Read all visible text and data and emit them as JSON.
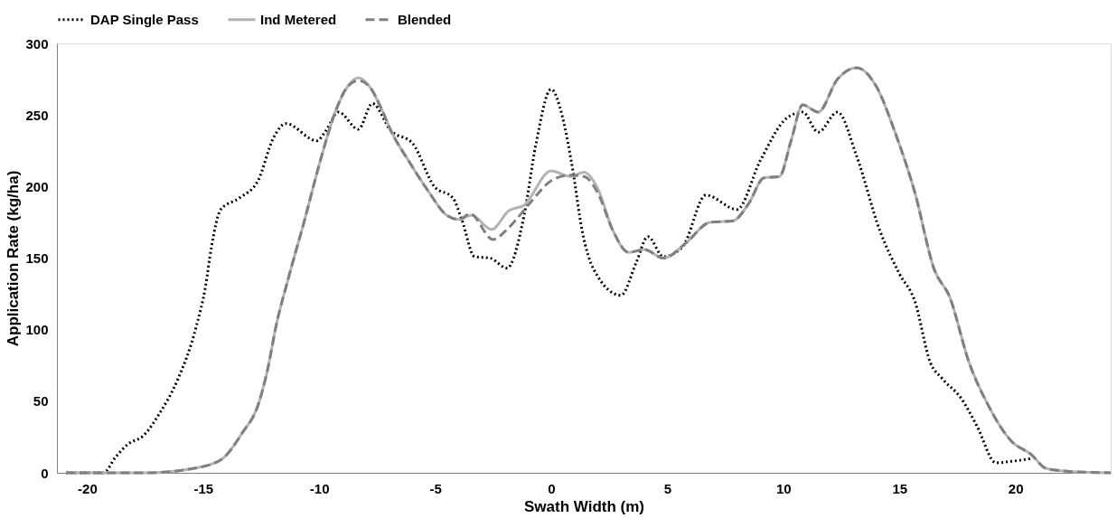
{
  "chart_data": {
    "type": "line",
    "xlabel": "Swath Width (m)",
    "ylabel": "Application Rate (kg/ha)",
    "xlim": [
      -21.3,
      24.1
    ],
    "xticks": [
      -20,
      -15,
      -10,
      -5,
      0,
      5,
      10,
      15,
      20
    ],
    "ylim": [
      0,
      300
    ],
    "yticks": [
      0,
      50,
      100,
      150,
      200,
      250,
      300
    ],
    "grid": false,
    "legend": "top",
    "marker": "none",
    "series": [
      {
        "name": "DAP Single Pass",
        "color": "#000000",
        "line_style": "dotted",
        "x": [
          -20.9,
          -19.3,
          -18.77,
          -18.24,
          -17.57,
          -16.9,
          -16.1,
          -15.3,
          -14.9,
          -14.64,
          -14.24,
          -13.44,
          -12.64,
          -11.97,
          -11.44,
          -10.1,
          -9.71,
          -9.17,
          -8.31,
          -7.71,
          -6.91,
          -5.97,
          -5.04,
          -4.24,
          -3.84,
          -3.31,
          -2.64,
          -1.91,
          -1.17,
          -0.67,
          -0.01,
          0.49,
          0.91,
          1.33,
          1.83,
          3.0,
          3.66,
          4.16,
          4.83,
          5.66,
          6.66,
          8.0,
          9.0,
          10.16,
          10.83,
          11.5,
          12.33,
          13.16,
          14.16,
          15.0,
          15.66,
          16.33,
          16.83,
          17.66,
          18.33,
          19.16,
          19.83,
          20.66
        ],
        "values": [
          0,
          0,
          11,
          20,
          26,
          41,
          65,
          102,
          130,
          158,
          184,
          192,
          204,
          234,
          244,
          232,
          239,
          252,
          240,
          258,
          239,
          230,
          200,
          192,
          176,
          151,
          150,
          143,
          180,
          229,
          268,
          248,
          213,
          169,
          142,
          124,
          147,
          165,
          151,
          158,
          194,
          184,
          218,
          248,
          252,
          238,
          252,
          221,
          169,
          139,
          120,
          77,
          66,
          52,
          33,
          7,
          8,
          10
        ]
      },
      {
        "name": "Ind Metered",
        "color": "#b3b3b3",
        "line_style": "solid",
        "x": [
          -20.9,
          -17.47,
          -15.44,
          -14.24,
          -13.31,
          -12.64,
          -12.24,
          -11.84,
          -11.31,
          -10.64,
          -9.97,
          -9.31,
          -8.77,
          -8.31,
          -7.84,
          -7.31,
          -6.91,
          -6.11,
          -5.31,
          -4.51,
          -3.97,
          -3.44,
          -2.57,
          -1.84,
          -1.17,
          -0.01,
          0.83,
          1.41,
          1.99,
          2.66,
          3.33,
          4.0,
          4.83,
          5.83,
          6.83,
          7.83,
          8.5,
          9.16,
          9.83,
          10.33,
          10.83,
          11.5,
          12.33,
          13.16,
          14.0,
          14.83,
          15.66,
          16.5,
          17.16,
          18.0,
          18.83,
          19.83,
          20.66,
          21.33,
          22.3,
          24.1
        ],
        "values": [
          0,
          0,
          3,
          9,
          28,
          47,
          71,
          104,
          137,
          176,
          217,
          252,
          270,
          276,
          270,
          254,
          239,
          217,
          197,
          180,
          177,
          180,
          170,
          183,
          187,
          211,
          207,
          210,
          199,
          169,
          154,
          156,
          150,
          161,
          175,
          176,
          188,
          206,
          207,
          232,
          257,
          252,
          275,
          283,
          270,
          237,
          196,
          142,
          123,
          77,
          47,
          22,
          13,
          3,
          1,
          0
        ]
      },
      {
        "name": "Blended",
        "color": "#808080",
        "line_style": "dashed",
        "x": [
          -20.9,
          -17.47,
          -15.44,
          -14.24,
          -13.31,
          -12.64,
          -12.24,
          -11.84,
          -11.31,
          -10.64,
          -9.97,
          -9.31,
          -8.77,
          -8.31,
          -7.84,
          -7.31,
          -6.91,
          -6.11,
          -5.31,
          -4.51,
          -3.97,
          -3.5,
          -2.51,
          -1.91,
          -1.51,
          -0.84,
          -0.01,
          0.83,
          1.41,
          1.99,
          2.66,
          3.33,
          4.0,
          4.83,
          5.83,
          6.83,
          7.83,
          8.5,
          9.16,
          9.83,
          10.33,
          10.83,
          11.5,
          12.33,
          13.16,
          14.0,
          14.83,
          15.66,
          16.5,
          17.16,
          18.0,
          18.83,
          19.83,
          20.66,
          21.33,
          22.3,
          24.1
        ],
        "values": [
          0,
          0,
          3,
          9,
          28,
          47,
          71,
          104,
          137,
          176,
          217,
          252,
          270,
          274,
          270,
          254,
          239,
          217,
          197,
          180,
          177,
          181,
          163,
          170,
          177,
          190,
          204,
          208,
          207,
          196,
          169,
          154,
          156,
          150,
          161,
          175,
          176,
          188,
          206,
          207,
          232,
          257,
          252,
          275,
          283,
          270,
          237,
          196,
          142,
          123,
          77,
          47,
          22,
          13,
          3,
          1,
          0
        ]
      }
    ]
  }
}
